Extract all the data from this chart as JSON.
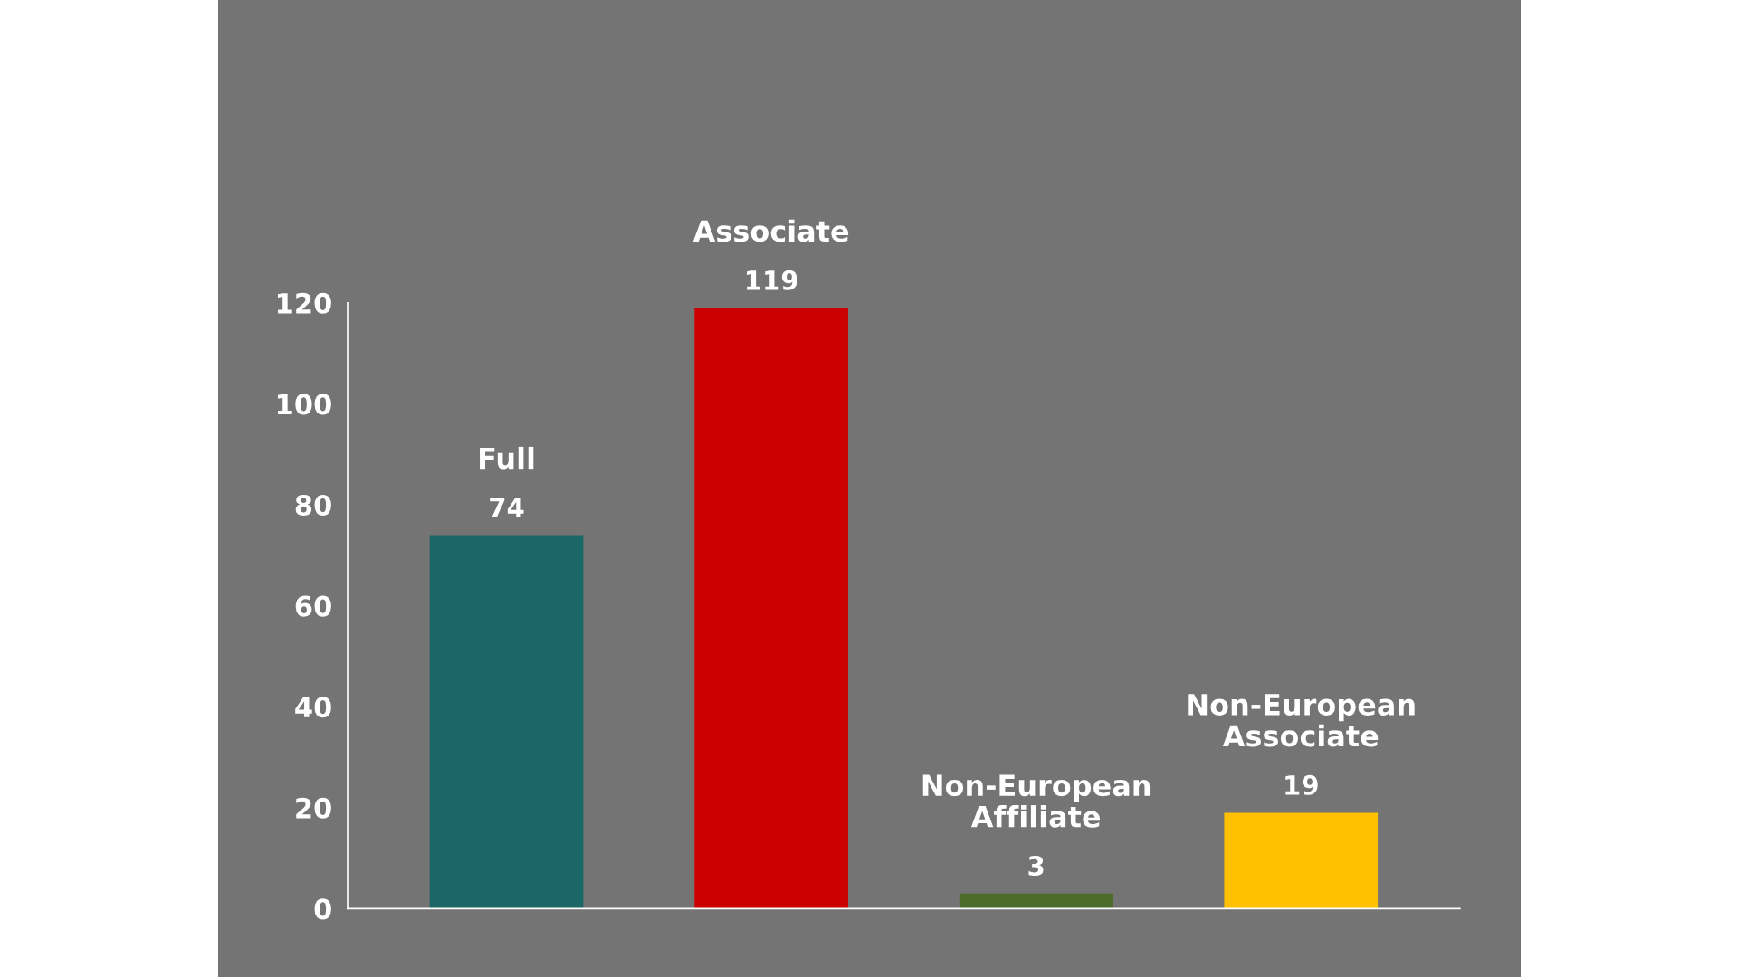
{
  "chart_data": {
    "type": "bar",
    "categories": [
      "Full",
      "Associate",
      "Non-European Affiliate",
      "Non-European Associate"
    ],
    "values": [
      74,
      119,
      3,
      19
    ],
    "colors": [
      "#1b6767",
      "#cc0000",
      "#4d6b2a",
      "#ffc000"
    ],
    "ylim": [
      0,
      120
    ],
    "yticks": [
      0,
      20,
      40,
      60,
      80,
      100,
      120
    ],
    "data_labels": true,
    "grid": false,
    "legend": false
  }
}
